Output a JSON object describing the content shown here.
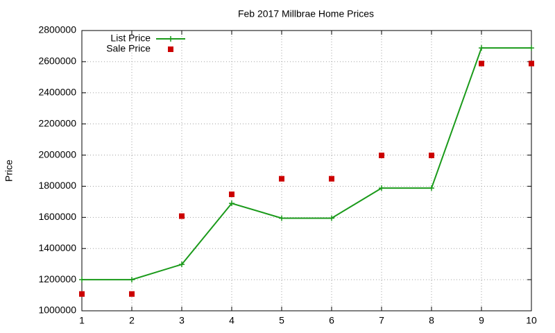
{
  "chart_data": {
    "type": "line",
    "title": "Feb 2017 Millbrae Home Prices",
    "y_label": "Price",
    "x": [
      1,
      2,
      3,
      4,
      5,
      6,
      7,
      8,
      9,
      10
    ],
    "series": [
      {
        "name": "List Price",
        "color": "#1a9a1a",
        "line": true,
        "marker": "plus",
        "values": [
          1200000,
          1200000,
          1298000,
          1690000,
          1595000,
          1595000,
          1788000,
          1788000,
          2688000,
          2688000
        ]
      },
      {
        "name": "Sale Price",
        "color": "#cc0000",
        "line": false,
        "marker": "square",
        "values": [
          1108000,
          1108000,
          1608000,
          1748000,
          1848000,
          1848000,
          1998000,
          1998000,
          2588000,
          2588000
        ]
      }
    ],
    "xlim": [
      1,
      10
    ],
    "xticks": [
      1,
      2,
      3,
      4,
      5,
      6,
      7,
      8,
      9,
      10
    ],
    "ylim": [
      1000000,
      2800000
    ],
    "yticks": [
      1000000,
      1200000,
      1400000,
      1600000,
      1800000,
      2000000,
      2200000,
      2400000,
      2600000,
      2800000
    ],
    "grid": true,
    "legend": "top-left"
  }
}
